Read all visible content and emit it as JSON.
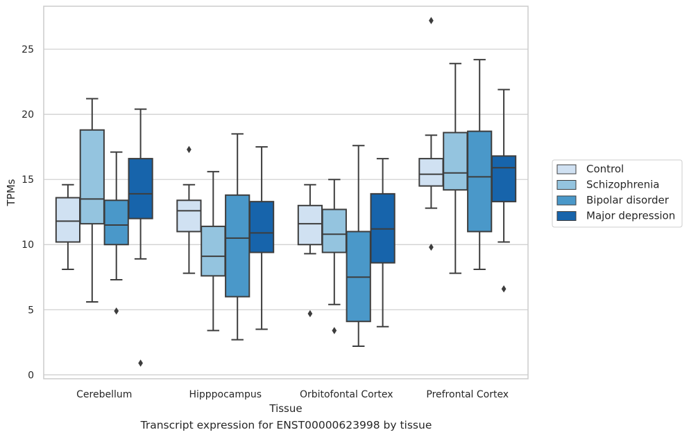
{
  "caption": "Transcript expression for ENST00000623998 by tissue",
  "chart_data": {
    "type": "box",
    "title": "",
    "xlabel": "Tissue",
    "ylabel": "TPMs",
    "ylim": [
      -0.3,
      28.3
    ],
    "yticks": [
      0,
      5,
      10,
      15,
      20,
      25
    ],
    "grid": "horizontal",
    "legend_position": "right",
    "categories": [
      "Cerebellum",
      "Hipppocampus",
      "Orbitofontal Cortex",
      "Prefrontal Cortex"
    ],
    "series": [
      {
        "name": "Control",
        "color": "#d0e1f2",
        "boxes": [
          {
            "whislo": 8.1,
            "q1": 10.2,
            "med": 11.8,
            "q3": 13.6,
            "whishi": 14.6,
            "fliers": []
          },
          {
            "whislo": 7.8,
            "q1": 11.0,
            "med": 12.6,
            "q3": 13.4,
            "whishi": 14.6,
            "fliers": [
              17.3
            ]
          },
          {
            "whislo": 9.3,
            "q1": 10.0,
            "med": 11.6,
            "q3": 13.0,
            "whishi": 14.6,
            "fliers": [
              4.7
            ]
          },
          {
            "whislo": 12.8,
            "q1": 14.5,
            "med": 15.4,
            "q3": 16.6,
            "whishi": 18.4,
            "fliers": [
              9.8,
              27.2
            ]
          }
        ]
      },
      {
        "name": "Schizophrenia",
        "color": "#94c4df",
        "boxes": [
          {
            "whislo": 5.6,
            "q1": 11.6,
            "med": 13.5,
            "q3": 18.8,
            "whishi": 21.2,
            "fliers": []
          },
          {
            "whislo": 3.4,
            "q1": 7.6,
            "med": 9.1,
            "q3": 11.4,
            "whishi": 15.6,
            "fliers": []
          },
          {
            "whislo": 5.4,
            "q1": 9.4,
            "med": 10.8,
            "q3": 12.7,
            "whishi": 15.0,
            "fliers": [
              3.4
            ]
          },
          {
            "whislo": 7.8,
            "q1": 14.2,
            "med": 15.5,
            "q3": 18.6,
            "whishi": 23.9,
            "fliers": []
          }
        ]
      },
      {
        "name": "Bipolar disorder",
        "color": "#4a98c9",
        "boxes": [
          {
            "whislo": 7.3,
            "q1": 10.0,
            "med": 11.5,
            "q3": 13.4,
            "whishi": 17.1,
            "fliers": [
              4.9
            ]
          },
          {
            "whislo": 2.7,
            "q1": 6.0,
            "med": 10.5,
            "q3": 13.8,
            "whishi": 18.5,
            "fliers": []
          },
          {
            "whislo": 2.2,
            "q1": 4.1,
            "med": 7.5,
            "q3": 11.0,
            "whishi": 17.6,
            "fliers": []
          },
          {
            "whislo": 8.1,
            "q1": 11.0,
            "med": 15.2,
            "q3": 18.7,
            "whishi": 24.2,
            "fliers": []
          }
        ]
      },
      {
        "name": "Major depression",
        "color": "#1764ab",
        "boxes": [
          {
            "whislo": 8.9,
            "q1": 12.0,
            "med": 13.9,
            "q3": 16.6,
            "whishi": 20.4,
            "fliers": [
              0.9
            ]
          },
          {
            "whislo": 3.5,
            "q1": 9.4,
            "med": 10.9,
            "q3": 13.3,
            "whishi": 17.5,
            "fliers": []
          },
          {
            "whislo": 3.7,
            "q1": 8.6,
            "med": 11.2,
            "q3": 13.9,
            "whishi": 16.6,
            "fliers": []
          },
          {
            "whislo": 10.2,
            "q1": 13.3,
            "med": 15.9,
            "q3": 16.8,
            "whishi": 21.9,
            "fliers": [
              6.6
            ]
          }
        ]
      }
    ],
    "colors": {
      "edge": "#3d3d3d",
      "grid": "#cccccc",
      "frame": "#cccccc"
    }
  }
}
